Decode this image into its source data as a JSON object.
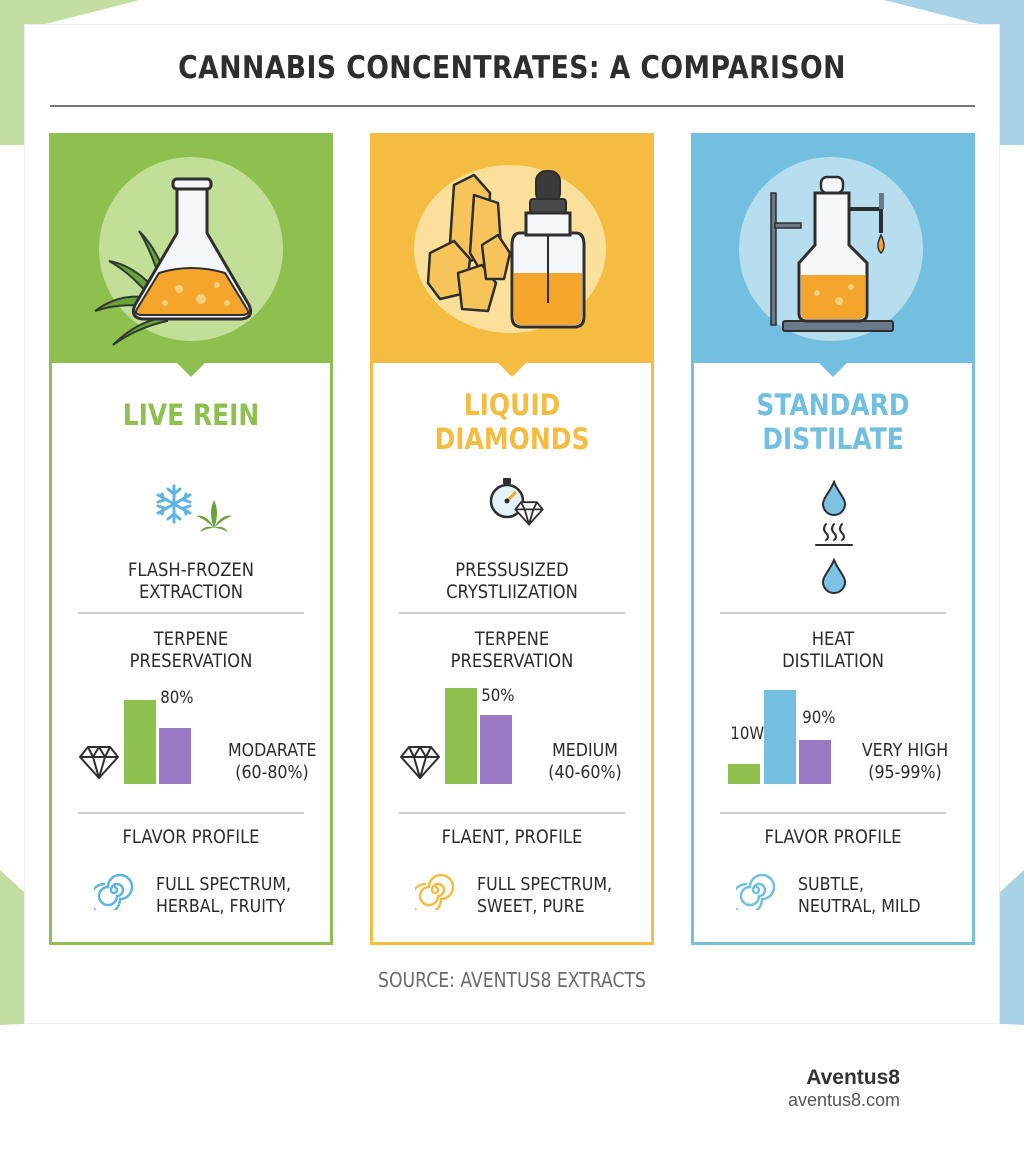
{
  "title": "CANNABIS CONCENTRATES: A COMPARISON",
  "colors": {
    "green": "#8dc04f",
    "yellow": "#f4bd42",
    "blue": "#72bfe0",
    "purple": "#9b78c2",
    "corner_green": "#c3dea3",
    "corner_blue": "#a8d3e7"
  },
  "cards": [
    {
      "name": "LIVE REIN",
      "name_lines": [
        "LIVE REIN",
        ""
      ],
      "head_icon": "flask-with-cannabis-leaf-icon",
      "method_icons": [
        "snowflake-icon",
        "cannabis-leaf-icon"
      ],
      "method_lines": [
        "FLASH-FROZEN",
        "EXTRACTION"
      ],
      "section_lines": [
        "TERPENE",
        "PRESERVATION"
      ],
      "bar_labels": [
        "80%"
      ],
      "level_lines": [
        "MODARATE",
        "(60-80%)"
      ],
      "flavor_heading": "FLAVOR PROFILE",
      "flavor_lines": [
        "FULL SPECTRUM,",
        "HERBAL, FRUITY"
      ]
    },
    {
      "name": "LIQUID DIAMONDS",
      "name_lines": [
        "LIQUID",
        "DIAMONDS"
      ],
      "head_icon": "crystals-and-dropper-bottle-icon",
      "method_icons": [
        "pressure-gauge-icon",
        "diamond-icon"
      ],
      "method_lines": [
        "PRESSUSIZED",
        "CRYSTLIIZATION"
      ],
      "section_lines": [
        "TERPENE",
        "PRESERVATION"
      ],
      "bar_labels": [
        "50%"
      ],
      "level_lines": [
        "MEDIUM",
        "(40-60%)"
      ],
      "flavor_heading": "FLAENT, PROFILE",
      "flavor_lines": [
        "FULL SPECTRUM,",
        "SWEET, PURE"
      ]
    },
    {
      "name": "STANDARD DISTILATE",
      "name_lines": [
        "STANDARD",
        "DISTILATE"
      ],
      "head_icon": "distillation-apparatus-icon",
      "method_icons": [
        "droplet-icon",
        "heat-icon",
        "droplet-icon"
      ],
      "method_lines": [
        "",
        ""
      ],
      "section_lines": [
        "HEAT",
        "DISTILATION"
      ],
      "bar_labels": [
        "10W",
        "90%"
      ],
      "level_lines": [
        "VERY HIGH",
        "(95-99%)"
      ],
      "flavor_heading": "FLAVOR PROFILE",
      "flavor_lines": [
        "SUBTLE,",
        "NEUTRAL, MILD"
      ]
    }
  ],
  "source": "SOURCE: AVENTUS8 EXTRACTS",
  "brand": {
    "name": "Aventus8",
    "url": "aventus8.com"
  }
}
